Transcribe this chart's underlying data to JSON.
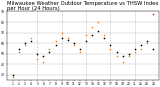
{
  "title": "Milwaukee Weather Outdoor Temperature vs THSW Index per Hour (24 Hours)",
  "title_fontsize": 3.8,
  "background_color": "#ffffff",
  "grid_color": "#bbbbbb",
  "temp_color": "#000000",
  "thsw_color_main": "#ff8800",
  "thsw_color_high": "#ff0000",
  "temp_x": [
    1,
    2,
    3,
    4,
    5,
    6,
    7,
    8,
    9,
    10,
    11,
    12,
    13,
    14,
    15,
    16,
    17,
    18,
    19,
    20,
    21,
    22,
    23,
    24
  ],
  "temp_y": [
    30,
    55,
    60,
    62,
    50,
    48,
    52,
    58,
    65,
    63,
    60,
    55,
    62,
    68,
    72,
    65,
    58,
    52,
    48,
    50,
    55,
    58,
    62,
    55
  ],
  "thsw_x": [
    1,
    2,
    3,
    4,
    5,
    6,
    7,
    8,
    9,
    10,
    11,
    12,
    13,
    14,
    15,
    16,
    17,
    18,
    19,
    20,
    21,
    22,
    23,
    24
  ],
  "thsw_y": [
    28,
    52,
    58,
    65,
    45,
    42,
    55,
    62,
    70,
    65,
    58,
    52,
    68,
    75,
    80,
    68,
    55,
    48,
    42,
    48,
    52,
    55,
    60,
    88
  ],
  "thsw_colors": [
    "#ff8800",
    "#ff8800",
    "#ff8800",
    "#ff8800",
    "#ff8800",
    "#ff8800",
    "#ff8800",
    "#ff8800",
    "#ff8800",
    "#ff8800",
    "#ff8800",
    "#ff8800",
    "#ff8800",
    "#ff8800",
    "#ff8800",
    "#ff8800",
    "#ff8800",
    "#ff8800",
    "#ff8800",
    "#ff8800",
    "#ff8800",
    "#ff8800",
    "#ff8800",
    "#ff0000"
  ],
  "marker_size": 1.5,
  "xlim": [
    0,
    25
  ],
  "ylim": [
    25,
    90
  ],
  "ytick_values": [
    30,
    40,
    50,
    60,
    70,
    80,
    90
  ],
  "ytick_labels": [
    "30",
    "40",
    "50",
    "60",
    "70",
    "80",
    "90"
  ],
  "xtick_positions": [
    1,
    2,
    3,
    4,
    5,
    6,
    7,
    8,
    9,
    10,
    11,
    12,
    13,
    14,
    15,
    16,
    17,
    18,
    19,
    20,
    21,
    22,
    23,
    24
  ],
  "xtick_labels": [
    "1",
    "2",
    "3",
    "4",
    "5",
    "6",
    "7",
    "8",
    "9",
    "10",
    "11",
    "12",
    "13",
    "14",
    "15",
    "16",
    "17",
    "18",
    "19",
    "20",
    "21",
    "22",
    "23",
    "24"
  ],
  "vline_positions": [
    5,
    9,
    13,
    17,
    21
  ],
  "figsize": [
    1.6,
    0.87
  ],
  "dpi": 100
}
